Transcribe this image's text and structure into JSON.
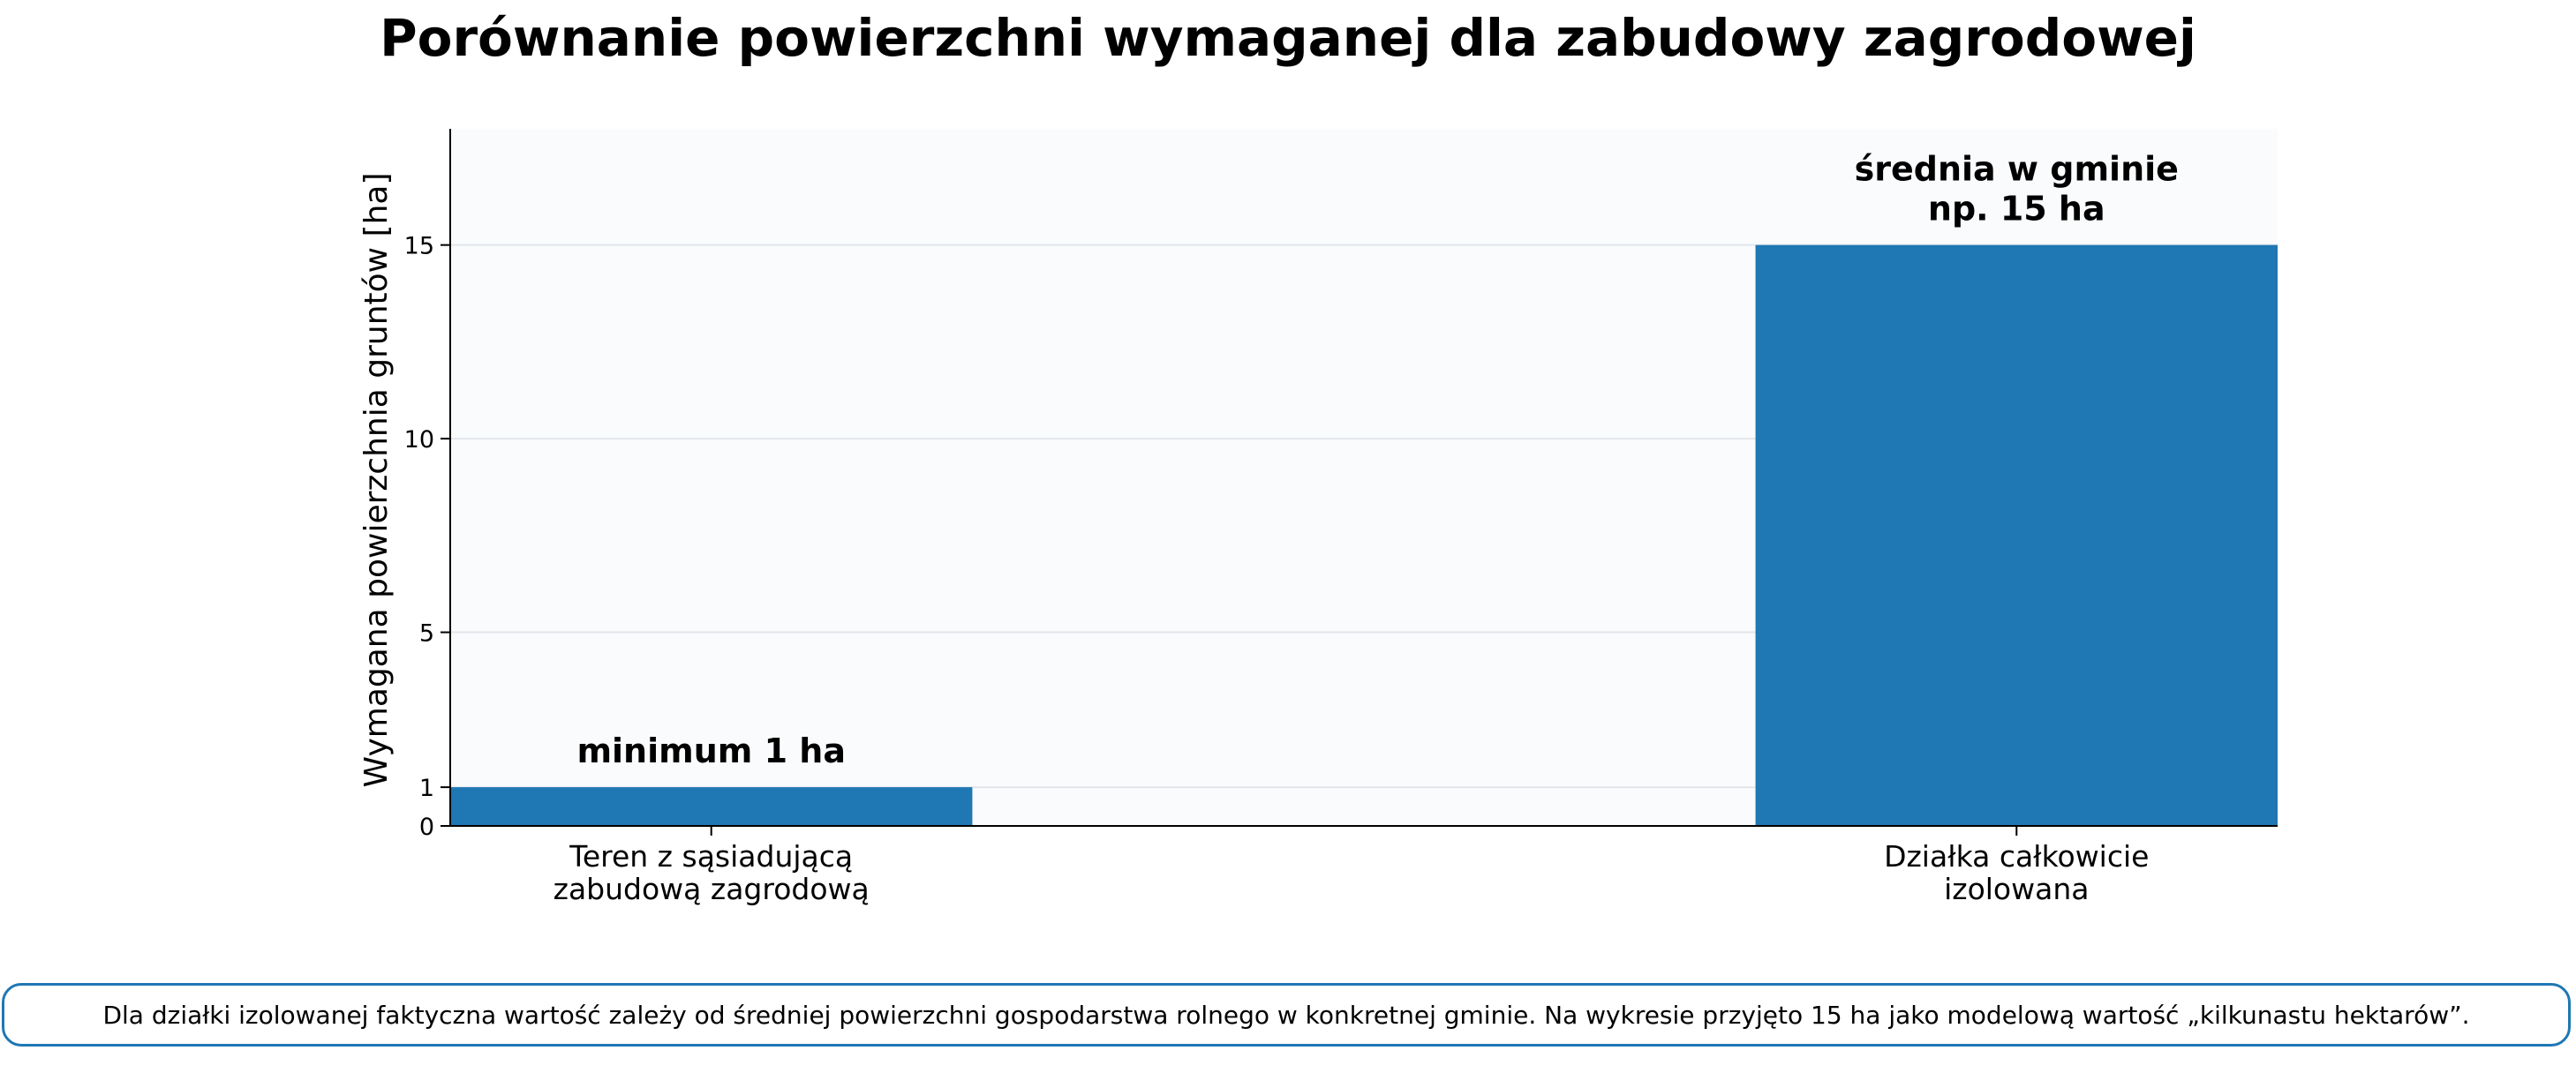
{
  "chart_data": {
    "type": "bar",
    "title": "Porównanie powierzchni wymaganej dla zabudowy zagrodowej",
    "ylabel": "Wymagana powierzchnia gruntów [ha]",
    "xlabel": "",
    "categories": [
      [
        "Teren z sąsiadującą",
        "zabudową zagrodową"
      ],
      [
        "Działka całkowicie",
        "izolowana"
      ]
    ],
    "values": [
      1,
      15
    ],
    "bar_labels": [
      [
        "minimum 1 ha"
      ],
      [
        "średnia w gminie",
        "np. 15 ha"
      ]
    ],
    "y_ticks": [
      0,
      1,
      5,
      10,
      15
    ],
    "ylim": [
      0,
      18
    ],
    "grid": "horizontal",
    "legend": "none",
    "colors": {
      "bar": "#1f77b4",
      "plot_background": "#f9fbfd",
      "grid": "#e3e7ec",
      "axis": "#000000"
    }
  },
  "footnote": "Dla działki izolowanej faktyczna wartość zależy od średniej powierzchni gospodarstwa rolnego w konkretnej gminie. Na wykresie przyjęto 15 ha jako modelową wartość „kilkunastu hektarów”."
}
